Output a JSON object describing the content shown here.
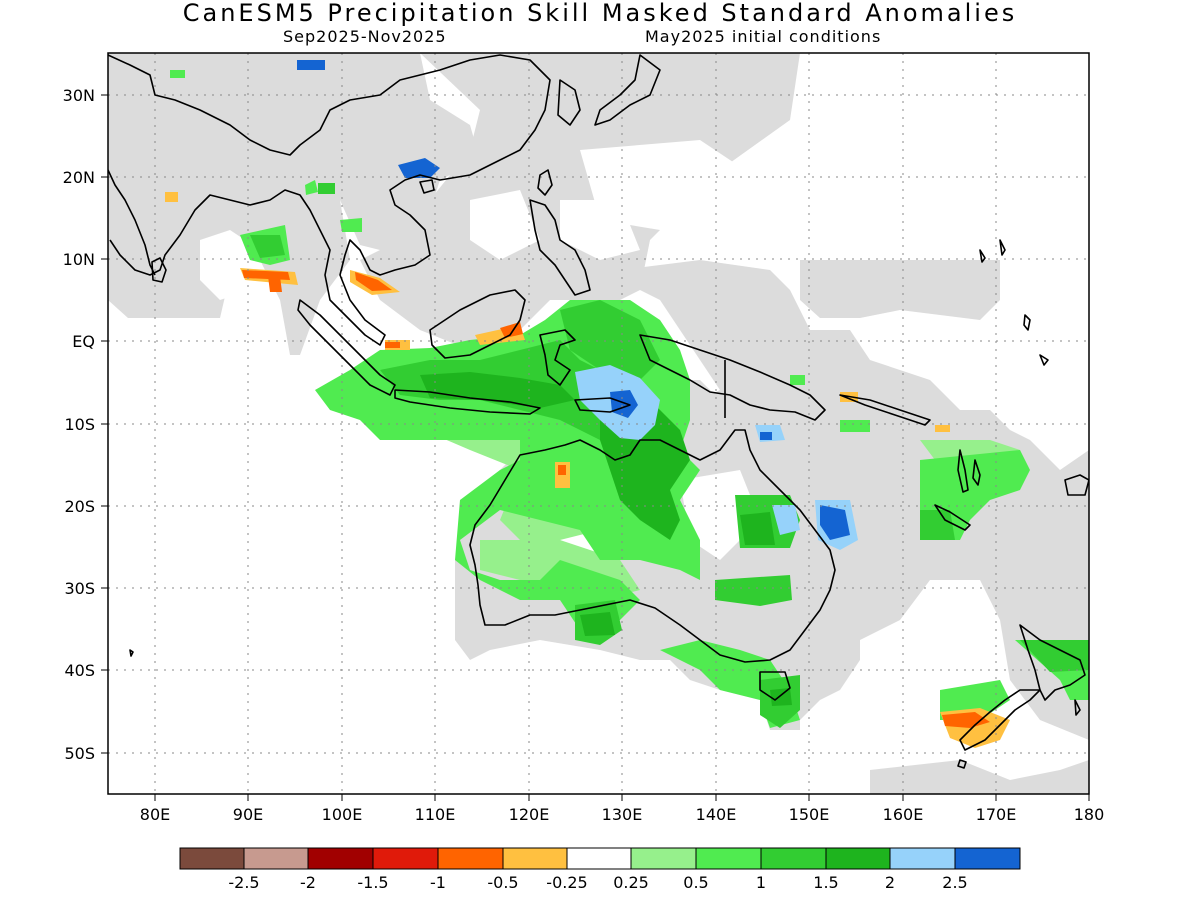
{
  "header": {
    "title": "CanESM5 Precipitation Skill Masked Standard Anomalies",
    "period": "Sep2025-Nov2025",
    "initial_conditions": "May2025 initial conditions"
  },
  "map": {
    "lon_range": [
      75,
      180
    ],
    "lat_range": [
      -55,
      35
    ],
    "lat_ticks": [
      {
        "value": 30,
        "label": "30N"
      },
      {
        "value": 20,
        "label": "20N"
      },
      {
        "value": 10,
        "label": "10N"
      },
      {
        "value": 0,
        "label": "EQ"
      },
      {
        "value": -10,
        "label": "10S"
      },
      {
        "value": -20,
        "label": "20S"
      },
      {
        "value": -30,
        "label": "30S"
      },
      {
        "value": -40,
        "label": "40S"
      },
      {
        "value": -50,
        "label": "50S"
      }
    ],
    "lon_ticks": [
      {
        "value": 80,
        "label": "80E"
      },
      {
        "value": 90,
        "label": "90E"
      },
      {
        "value": 100,
        "label": "100E"
      },
      {
        "value": 110,
        "label": "110E"
      },
      {
        "value": 120,
        "label": "120E"
      },
      {
        "value": 130,
        "label": "130E"
      },
      {
        "value": 140,
        "label": "140E"
      },
      {
        "value": 150,
        "label": "150E"
      },
      {
        "value": 160,
        "label": "160E"
      },
      {
        "value": 170,
        "label": "170E"
      },
      {
        "value": 180,
        "label": "180"
      }
    ],
    "grid": true,
    "mask_color": "#dcdcdc"
  },
  "colorbar": {
    "colors": [
      "#7b4a3c",
      "#c79a8f",
      "#a10000",
      "#e01a0a",
      "#ff6400",
      "#ffc040",
      "#ffffff",
      "#96f08c",
      "#50eb50",
      "#32cd32",
      "#1eb41e",
      "#96d2fa",
      "#1464d2"
    ],
    "labels": [
      "-2.5",
      "-2",
      "-1.5",
      "-1",
      "-0.5",
      "-0.25",
      "0.25",
      "0.5",
      "1",
      "1.5",
      "2",
      "2.5"
    ]
  }
}
